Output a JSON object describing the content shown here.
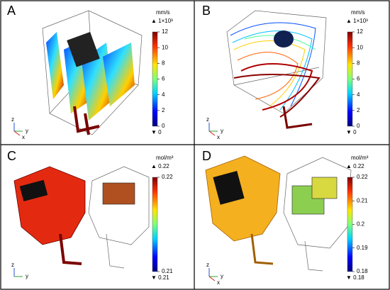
{
  "panels": [
    {
      "label": "A",
      "unit": "mm/s",
      "max_label": "▲ 1×10³",
      "ticks": [
        12,
        10,
        8,
        6,
        4,
        2,
        0
      ],
      "min_label": "▼ 0",
      "axes": [
        "z",
        "y",
        "x"
      ]
    },
    {
      "label": "B",
      "unit": "mm/s",
      "max_label": "▲ 1×10³",
      "ticks": [
        12,
        10,
        8,
        6,
        4,
        2,
        0
      ],
      "min_label": "▼ 0",
      "axes": [
        "z",
        "y",
        "x"
      ]
    },
    {
      "label": "C",
      "unit": "mol/m³",
      "max_label": "▲ 0.22",
      "ticks": [
        0.22,
        0.21
      ],
      "min_label": "▼ 0.21",
      "axes": [
        "z",
        "y"
      ]
    },
    {
      "label": "D",
      "unit": "mol/m³",
      "max_label": "▲ 0.22",
      "ticks": [
        0.22,
        0.21,
        0.2,
        0.19,
        0.18
      ],
      "min_label": "▼ 0.18",
      "axes": [
        "z",
        "y",
        "x"
      ]
    }
  ]
}
